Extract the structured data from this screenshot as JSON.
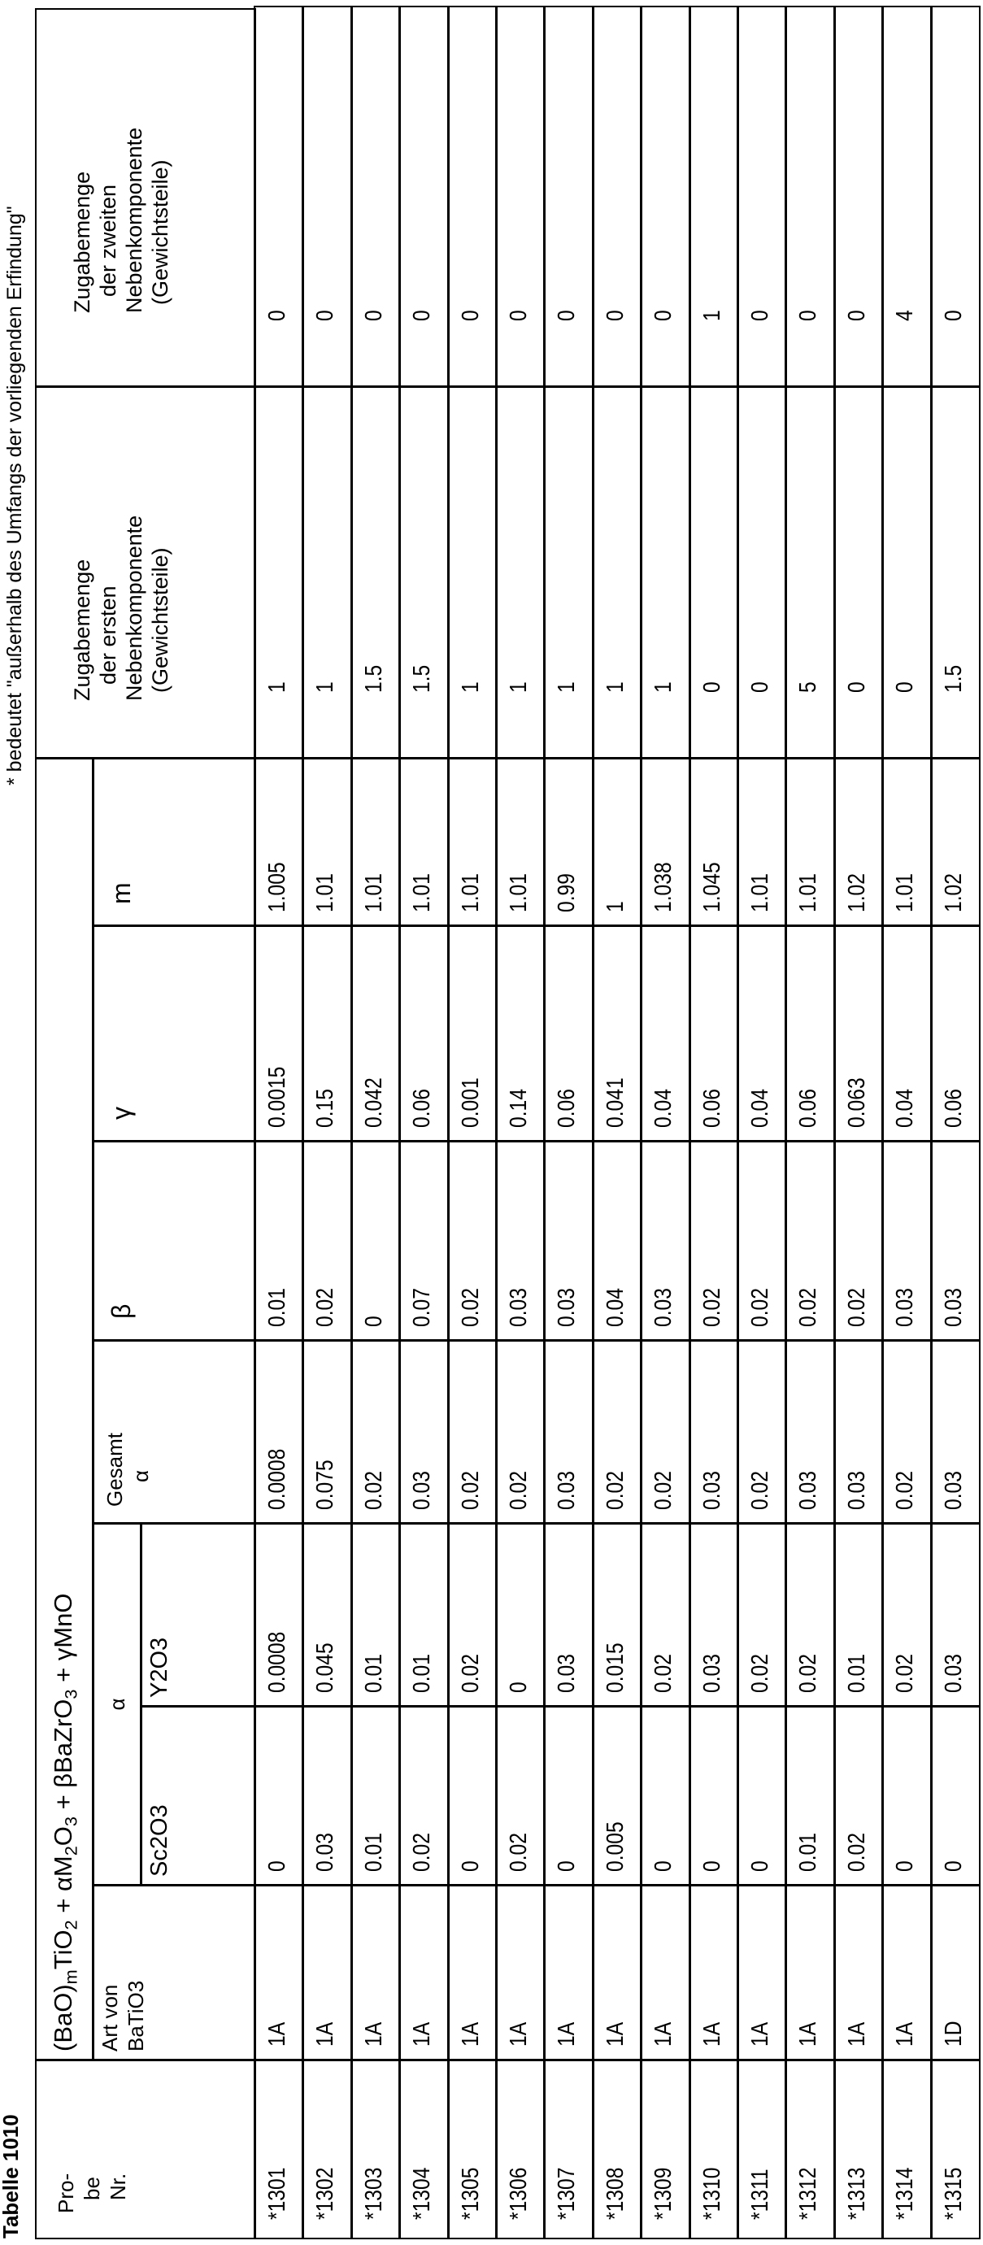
{
  "title": "Tabelle 1010",
  "footnote": "* bedeutet \"außerhalb des Umfangs der vorliegenden Erfindung\"",
  "header": {
    "probe_lines": [
      "Pro-",
      "be",
      "Nr."
    ],
    "formula_parts": [
      {
        "text": "(BaO)"
      },
      {
        "sub": "m"
      },
      {
        "text": "TiO"
      },
      {
        "sub": "2"
      },
      {
        "text": " + αM"
      },
      {
        "sub": "2"
      },
      {
        "text": "O"
      },
      {
        "sub": "3"
      },
      {
        "text": " + βBaZrO"
      },
      {
        "sub": "3"
      },
      {
        "text": " + γMnO"
      }
    ],
    "art_lines": [
      "Art von",
      "BaTiO3"
    ],
    "alpha": "α",
    "sc": "Sc2O3",
    "y": "Y2O3",
    "gesamt_lines": [
      "Gesamt",
      "α"
    ],
    "beta": "β",
    "gamma": "γ",
    "m": "m",
    "first_lines": [
      "Zugabemenge",
      "der ersten",
      "Nebenkomponente",
      "(Gewichtsteile)"
    ],
    "second_lines": [
      "Zugabemenge",
      "der zweiten",
      "Nebenkomponente",
      "(Gewichtsteile)"
    ]
  },
  "rows": [
    [
      "*1301",
      "1A",
      "0",
      "0.0008",
      "0.0008",
      "0.01",
      "0.0015",
      "1.005",
      "1",
      "0"
    ],
    [
      "*1302",
      "1A",
      "0.03",
      "0.045",
      "0.075",
      "0.02",
      "0.15",
      "1.01",
      "1",
      "0"
    ],
    [
      "*1303",
      "1A",
      "0.01",
      "0.01",
      "0.02",
      "0",
      "0.042",
      "1.01",
      "1.5",
      "0"
    ],
    [
      "*1304",
      "1A",
      "0.02",
      "0.01",
      "0.03",
      "0.07",
      "0.06",
      "1.01",
      "1.5",
      "0"
    ],
    [
      "*1305",
      "1A",
      "0",
      "0.02",
      "0.02",
      "0.02",
      "0.001",
      "1.01",
      "1",
      "0"
    ],
    [
      "*1306",
      "1A",
      "0.02",
      "0",
      "0.02",
      "0.03",
      "0.14",
      "1.01",
      "1",
      "0"
    ],
    [
      "*1307",
      "1A",
      "0",
      "0.03",
      "0.03",
      "0.03",
      "0.06",
      "0.99",
      "1",
      "0"
    ],
    [
      "*1308",
      "1A",
      "0.005",
      "0.015",
      "0.02",
      "0.04",
      "0.041",
      "1",
      "1",
      "0"
    ],
    [
      "*1309",
      "1A",
      "0",
      "0.02",
      "0.02",
      "0.03",
      "0.04",
      "1.038",
      "1",
      "0"
    ],
    [
      "*1310",
      "1A",
      "0",
      "0.03",
      "0.03",
      "0.02",
      "0.06",
      "1.045",
      "0",
      "1"
    ],
    [
      "*1311",
      "1A",
      "0",
      "0.02",
      "0.02",
      "0.02",
      "0.04",
      "1.01",
      "0",
      "0"
    ],
    [
      "*1312",
      "1A",
      "0.01",
      "0.02",
      "0.03",
      "0.02",
      "0.06",
      "1.01",
      "5",
      "0"
    ],
    [
      "*1313",
      "1A",
      "0.02",
      "0.01",
      "0.03",
      "0.02",
      "0.063",
      "1.02",
      "0",
      "0"
    ],
    [
      "*1314",
      "1A",
      "0",
      "0.02",
      "0.02",
      "0.03",
      "0.04",
      "1.01",
      "0",
      "4"
    ],
    [
      "*1315",
      "1D",
      "0",
      "0.03",
      "0.03",
      "0.03",
      "0.06",
      "1.02",
      "1.5",
      "0"
    ]
  ]
}
